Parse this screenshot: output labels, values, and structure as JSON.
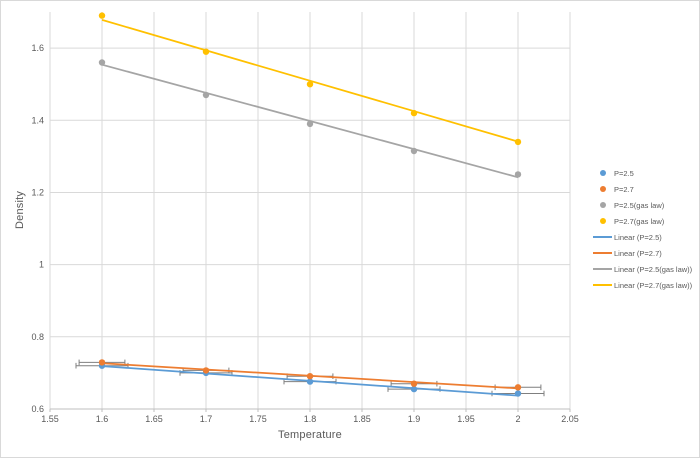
{
  "chart_data": {
    "type": "scatter",
    "title": "",
    "xlabel": "Temperature",
    "ylabel": "Density",
    "xlim": [
      1.55,
      2.05
    ],
    "ylim": [
      0.6,
      1.7
    ],
    "grid": true,
    "legend_position": "right",
    "x_tick_values": [
      1.55,
      1.6,
      1.65,
      1.7,
      1.75,
      1.8,
      1.85,
      1.9,
      1.95,
      2.0,
      2.05
    ],
    "x_tick_labels": [
      "1.55",
      "1.6",
      "1.65",
      "1.7",
      "1.75",
      "1.8",
      "1.85",
      "1.9",
      "1.95",
      "2",
      "2.05"
    ],
    "y_tick_values": [
      0.6,
      0.8,
      1.0,
      1.2,
      1.4,
      1.6
    ],
    "y_tick_labels": [
      "0.6",
      "0.8",
      "1",
      "1.2",
      "1.4",
      "1.6"
    ],
    "x": [
      1.6,
      1.7,
      1.8,
      1.9,
      2.0
    ],
    "series": [
      {
        "name": "P=2.5",
        "color": "#5B9BD5",
        "marker": "circle",
        "values": [
          0.72,
          0.7,
          0.676,
          0.655,
          0.643
        ],
        "x_error": 0.025
      },
      {
        "name": "P=2.7",
        "color": "#ED7D31",
        "marker": "circle",
        "values": [
          0.729,
          0.707,
          0.691,
          0.67,
          0.66
        ],
        "x_error": 0.022
      },
      {
        "name": "P=2.5(gas law)",
        "color": "#A5A5A5",
        "marker": "circle",
        "values": [
          1.56,
          1.47,
          1.39,
          1.315,
          1.25
        ]
      },
      {
        "name": "P=2.7(gas law)",
        "color": "#FFC000",
        "marker": "circle",
        "values": [
          1.69,
          1.59,
          1.5,
          1.42,
          1.34
        ]
      }
    ],
    "trendlines": [
      {
        "name": "Linear (P=2.5)",
        "color": "#5B9BD5",
        "x_start": 1.6,
        "y_start": 0.719,
        "x_end": 2.0,
        "y_end": 0.637
      },
      {
        "name": "Linear (P=2.7)",
        "color": "#ED7D31",
        "x_start": 1.6,
        "y_start": 0.727,
        "x_end": 2.0,
        "y_end": 0.657
      },
      {
        "name": "Linear (P=2.5(gas law))",
        "color": "#A5A5A5",
        "x_start": 1.6,
        "y_start": 1.554,
        "x_end": 2.0,
        "y_end": 1.242
      },
      {
        "name": "Linear (P=2.7(gas law))",
        "color": "#FFC000",
        "x_start": 1.6,
        "y_start": 1.678,
        "x_end": 2.0,
        "y_end": 1.341
      }
    ],
    "colors": {
      "background": "#FFFFFF",
      "frame_border": "#D9D9D9",
      "gridline": "#D9D9D9",
      "axis_line": "#BFBFBF",
      "tick_text": "#595959",
      "axis_title_text": "#595959",
      "legend_text": "#595959",
      "error_bar": "#7F7F7F"
    }
  }
}
